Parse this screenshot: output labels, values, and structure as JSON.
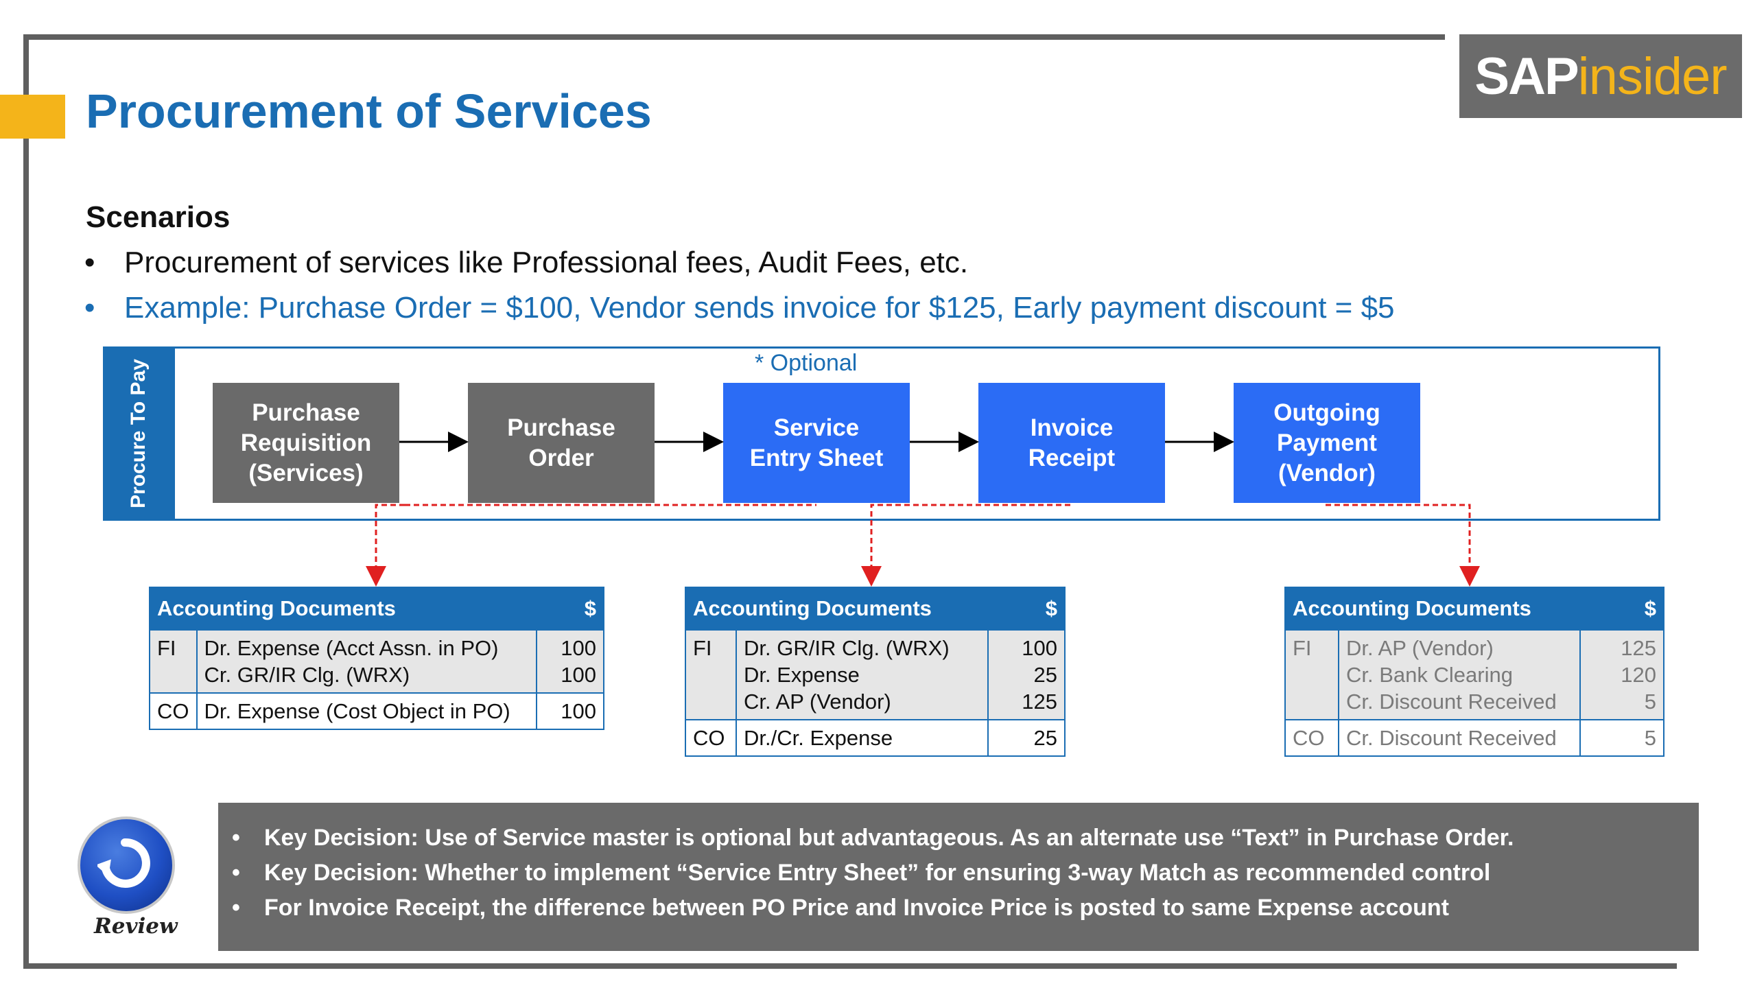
{
  "header": {
    "title": "Procurement of Services",
    "logo": {
      "part1": "SAP",
      "part2": "insider"
    }
  },
  "scenarios": {
    "heading": "Scenarios",
    "bullets": [
      "Procurement of services like Professional fees, Audit Fees, etc.",
      "Example: Purchase Order = $100, Vendor sends invoice for $125, Early payment discount = $5"
    ],
    "bullet_symbol": "•"
  },
  "process": {
    "label": "Procure To Pay",
    "optional_note": "* Optional",
    "steps": [
      {
        "label": "Purchase\nRequisition\n(Services)",
        "style": "grey"
      },
      {
        "label": "Purchase\nOrder",
        "style": "grey"
      },
      {
        "label": "Service\nEntry Sheet",
        "style": "blue"
      },
      {
        "label": "Invoice\nReceipt",
        "style": "blue"
      },
      {
        "label": "Outgoing\nPayment\n(Vendor)",
        "style": "blue"
      }
    ]
  },
  "documents": [
    {
      "header": "Accounting Documents",
      "currency": "$",
      "rows": [
        {
          "module": "FI",
          "lines": [
            "Dr. Expense (Acct Assn. in PO)",
            "Cr. GR/IR Clg. (WRX)"
          ],
          "amounts": [
            "100",
            "100"
          ]
        },
        {
          "module": "CO",
          "lines": [
            "Dr. Expense (Cost Object in PO)"
          ],
          "amounts": [
            "100"
          ]
        }
      ]
    },
    {
      "header": "Accounting Documents",
      "currency": "$",
      "rows": [
        {
          "module": "FI",
          "lines": [
            "Dr. GR/IR Clg. (WRX)",
            "Dr. Expense",
            "Cr. AP (Vendor)"
          ],
          "amounts": [
            "100",
            "25",
            "125"
          ]
        },
        {
          "module": "CO",
          "lines": [
            "Dr./Cr. Expense"
          ],
          "amounts": [
            "25"
          ]
        }
      ]
    },
    {
      "header": "Accounting Documents",
      "currency": "$",
      "rows": [
        {
          "module": "FI",
          "lines": [
            "Dr. AP (Vendor)",
            "Cr. Bank Clearing",
            "Cr. Discount Received"
          ],
          "amounts": [
            "125",
            "120",
            "5"
          ]
        },
        {
          "module": "CO",
          "lines": [
            "Cr. Discount Received"
          ],
          "amounts": [
            "5"
          ]
        }
      ]
    }
  ],
  "review": {
    "label": "Review",
    "icon": "review-arrow-icon",
    "key_points": [
      "Key Decision: Use of Service master is optional but advantageous. As an alternate use “Text” in Purchase Order.",
      "Key Decision: Whether to implement “Service Entry Sheet” for ensuring 3-way Match as recommended control",
      "For Invoice Receipt, the difference between PO Price and Invoice Price is posted to same Expense account"
    ]
  },
  "colors": {
    "title_blue": "#1a6db3",
    "step_blue": "#2b6cf5",
    "step_grey": "#6a6a6a",
    "accent_yellow": "#f4b41a",
    "connector_red": "#e02020"
  }
}
